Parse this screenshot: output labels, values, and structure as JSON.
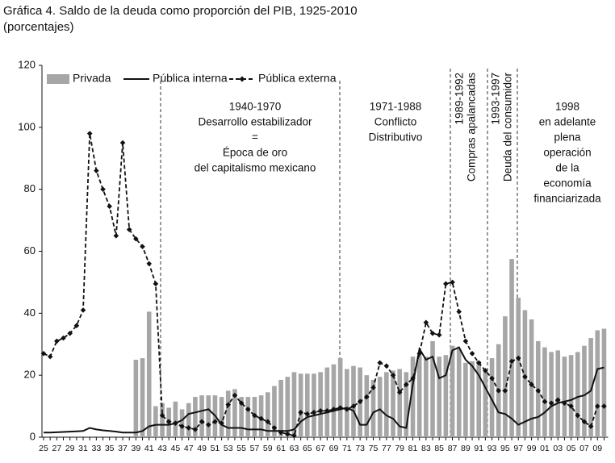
{
  "chart_data": {
    "type": "bar",
    "title": "Gráfica 4. Saldo de la deuda como proporción del PIB, 1925-2010",
    "subtitle": "(porcentajes)",
    "categories": [
      "25",
      null,
      "27",
      null,
      "29",
      null,
      "31",
      null,
      "33",
      null,
      "35",
      null,
      "37",
      null,
      "39",
      null,
      "41",
      null,
      "43",
      null,
      "45",
      null,
      "47",
      null,
      "49",
      null,
      "51",
      null,
      "53",
      null,
      "55",
      null,
      "57",
      null,
      "59",
      null,
      "61",
      null,
      "63",
      null,
      "65",
      null,
      "67",
      null,
      "69",
      null,
      "71",
      null,
      "73",
      null,
      "75",
      null,
      "77",
      null,
      "79",
      null,
      "81",
      null,
      "83",
      null,
      "85",
      null,
      "87",
      null,
      "89",
      null,
      "91",
      null,
      "93",
      null,
      "95",
      null,
      "97",
      null,
      "99",
      null,
      "01",
      null,
      "03",
      null,
      "05",
      null,
      "07",
      null,
      "09",
      null
    ],
    "series": [
      {
        "name": "Privada",
        "type": "bar",
        "color": "#a6a6a6",
        "values": [
          null,
          null,
          null,
          null,
          null,
          null,
          null,
          null,
          null,
          null,
          null,
          null,
          null,
          null,
          25,
          25.5,
          40.5,
          10,
          11,
          9.5,
          11.5,
          9,
          11,
          13,
          13.5,
          13.5,
          13.5,
          13,
          15,
          15.5,
          13,
          13,
          13,
          13.5,
          14.5,
          16.5,
          18.5,
          19.5,
          21,
          20.5,
          20.5,
          20.5,
          21,
          22.5,
          23.5,
          25.5,
          22,
          23,
          22.5,
          20,
          18.5,
          19.5,
          21,
          21.5,
          22,
          21,
          26,
          26.5,
          26,
          31,
          26,
          26.5,
          29.5,
          28.5,
          24,
          24.5,
          24.5,
          22,
          25.5,
          30,
          39,
          57.5,
          45,
          41,
          38,
          31,
          29,
          27.5,
          28,
          26,
          26.5,
          27.5,
          29.5,
          32,
          34.5,
          35
        ]
      },
      {
        "name": "Pública interna",
        "type": "line",
        "color": "#111111",
        "values": [
          1.5,
          1.5,
          1.6,
          1.7,
          1.8,
          1.9,
          2,
          3,
          2.5,
          2.2,
          2,
          1.8,
          1.5,
          1.5,
          1.5,
          2,
          3.5,
          4,
          4,
          4,
          4.5,
          5.5,
          7.5,
          8,
          8.5,
          9,
          7,
          4,
          3,
          3,
          3,
          2.5,
          2.5,
          2.5,
          2,
          2,
          2,
          2,
          2.5,
          5,
          6.5,
          7,
          7.5,
          8,
          8.5,
          9,
          9.5,
          8.5,
          4,
          4,
          8,
          9,
          7,
          6,
          3.5,
          3,
          17,
          28.5,
          25,
          26,
          19,
          20,
          28,
          29,
          25,
          23,
          20,
          16,
          12,
          8,
          7.5,
          6,
          4,
          5,
          6,
          6.5,
          8,
          10,
          11,
          11.5,
          12,
          13,
          13.5,
          15,
          22,
          22.5
        ]
      },
      {
        "name": "Pública externa",
        "type": "line",
        "dashed": true,
        "marker": "diamond",
        "color": "#111111",
        "values": [
          27,
          26,
          31,
          32,
          33.5,
          36,
          41,
          98,
          86,
          80,
          74.5,
          65,
          95,
          67,
          64,
          61.5,
          56,
          49.5,
          7,
          5,
          4.5,
          3.5,
          3,
          2.5,
          5,
          4,
          5,
          4.5,
          10.5,
          13.5,
          11,
          9,
          7,
          6,
          5,
          3,
          1.5,
          1,
          0.5,
          8,
          7.5,
          8,
          8.5,
          8.5,
          9,
          9.5,
          9,
          10,
          11.5,
          13,
          16,
          24,
          23,
          20,
          14.5,
          17,
          19,
          27,
          37,
          33.5,
          33,
          49.5,
          50,
          40.5,
          31,
          27,
          24,
          21.5,
          19,
          15,
          15,
          24.5,
          25.5,
          19.5,
          17,
          15,
          11.5,
          11,
          12,
          11,
          10,
          7,
          5,
          3.5,
          10,
          10
        ]
      }
    ],
    "ylim": [
      0,
      120
    ],
    "yticks": [
      0,
      20,
      40,
      60,
      80,
      100,
      120
    ],
    "grid": false,
    "legend": "top",
    "annotations": [
      [
        "1940-1970",
        "Desarrollo estabilizador",
        "=",
        "Época de oro",
        "del capitalismo mexicano"
      ],
      [
        "1971-1988",
        "Conflicto",
        "Distributivo"
      ],
      [
        "1989-1992",
        "Compras apalancadas"
      ],
      [
        "1993-1997",
        "Deuda del consumidor"
      ],
      [
        "1998",
        "en adelante",
        "plena",
        "operación",
        "de la",
        "economía",
        "financiarizada"
      ]
    ]
  }
}
